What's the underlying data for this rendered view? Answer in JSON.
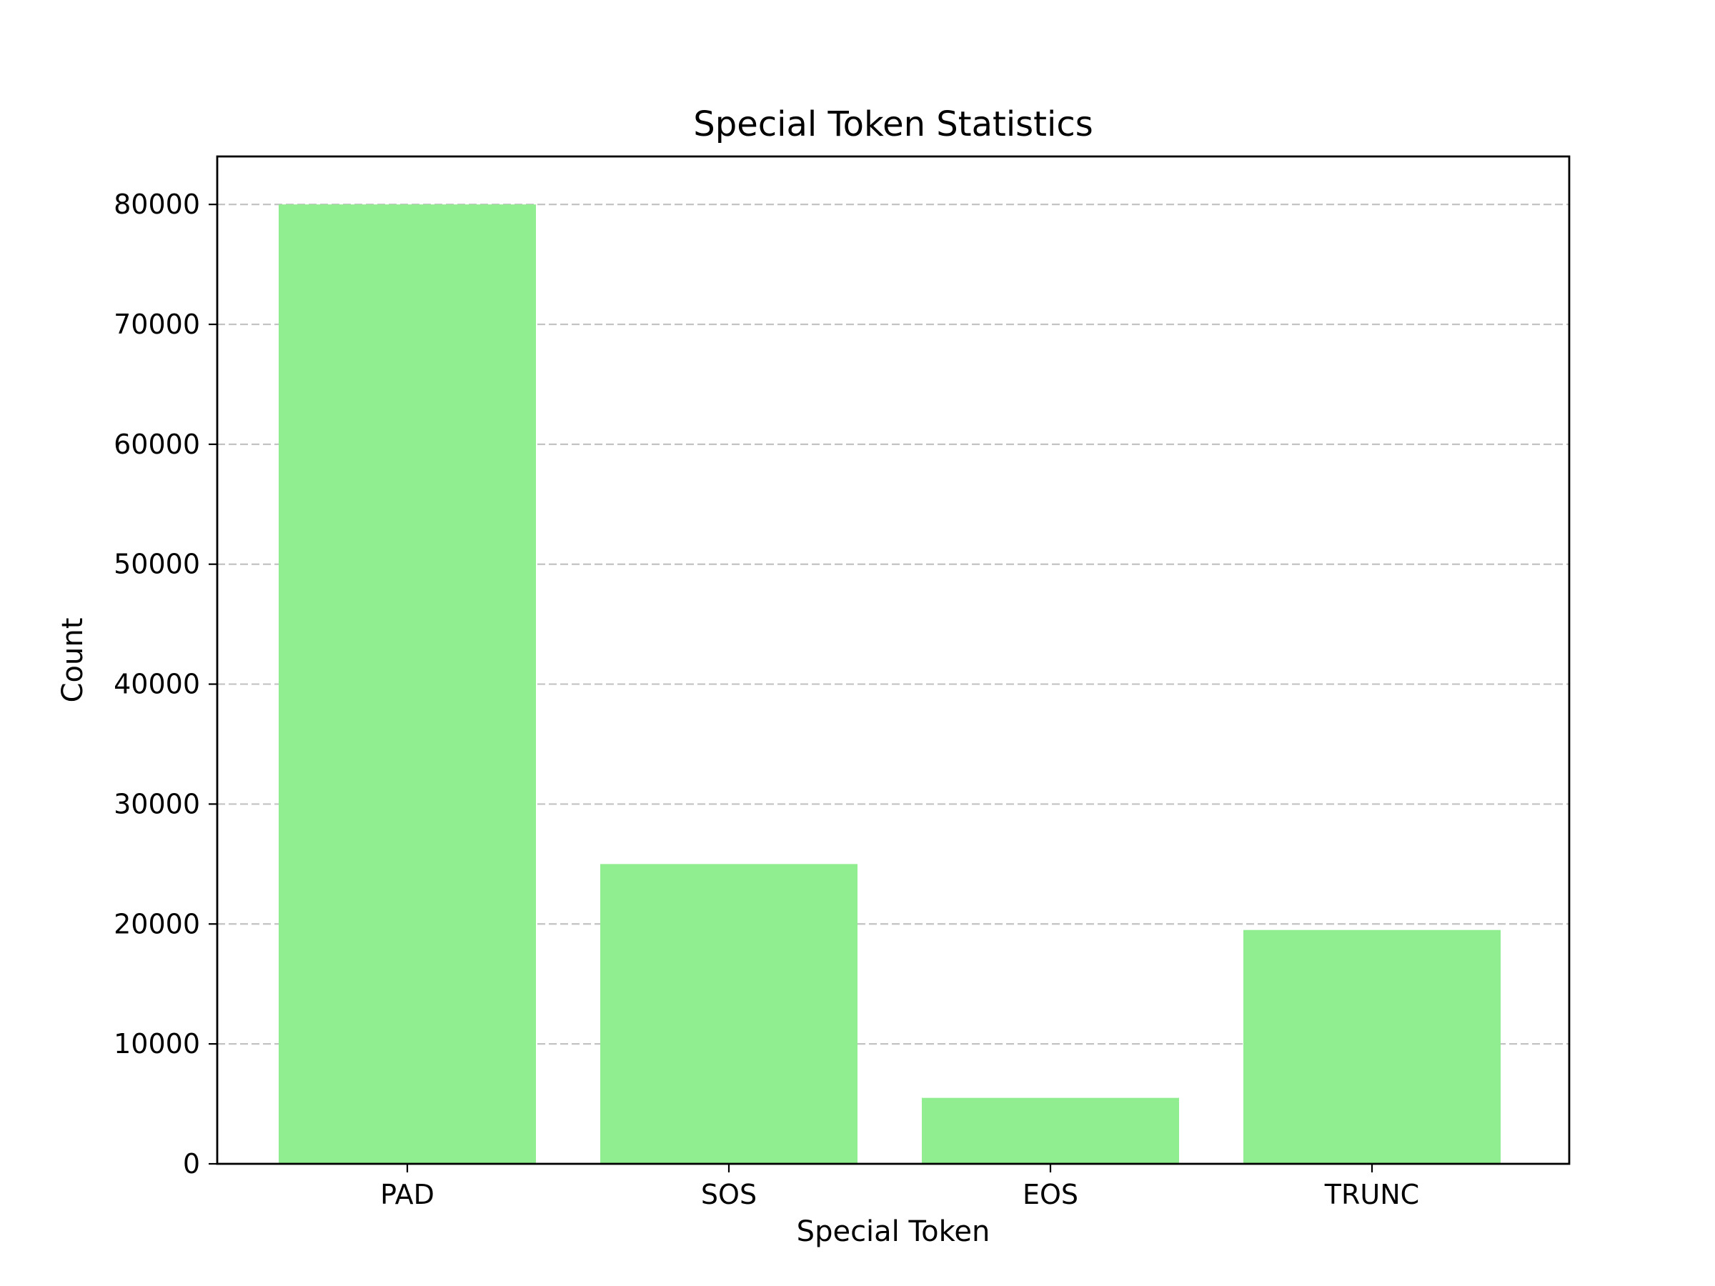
{
  "chart_data": {
    "type": "bar",
    "title": "Special Token Statistics",
    "xlabel": "Special Token",
    "ylabel": "Count",
    "categories": [
      "PAD",
      "SOS",
      "EOS",
      "TRUNC"
    ],
    "values": [
      80000,
      25000,
      5500,
      19500
    ],
    "ylim": [
      0,
      84000
    ],
    "yticks": [
      0,
      10000,
      20000,
      30000,
      40000,
      50000,
      60000,
      70000,
      80000
    ],
    "ytick_labels": [
      "0",
      "10000",
      "20000",
      "30000",
      "40000",
      "50000",
      "60000",
      "70000",
      "80000"
    ],
    "grid": {
      "axis": "y",
      "style": "dashed"
    },
    "bar_color": "#90ee90",
    "legend": "none"
  }
}
